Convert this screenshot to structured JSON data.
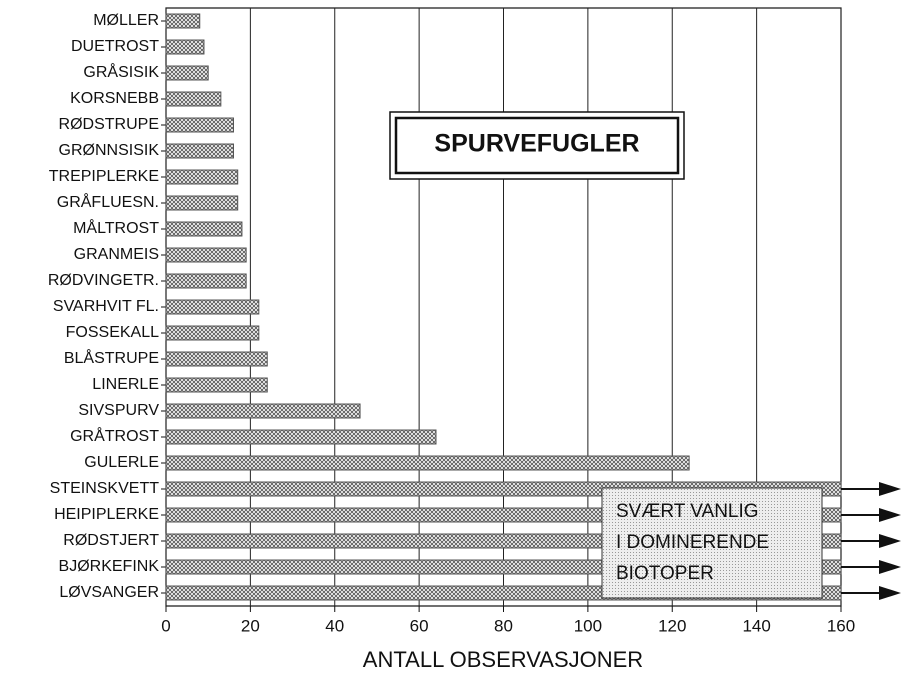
{
  "chart_data": {
    "type": "bar",
    "orientation": "horizontal",
    "title": "SPURVEFUGLER",
    "xlabel": "ANTALL OBSERVASJONER",
    "annotation": [
      "SVÆRT VANLIG",
      "I DOMINERENDE",
      "BIOTOPER"
    ],
    "categories": [
      "MØLLER",
      "DUETROST",
      "GRÅSISIK",
      "KORSNEBB",
      "RØDSTRUPE",
      "GRØNNSISIK",
      "TREPIPLERKE",
      "GRÅFLUESN.",
      "MÅLTROST",
      "GRANMEIS",
      "RØDVINGETR.",
      "SVARHVIT FL.",
      "FOSSEKALL",
      "BLÅSTRUPE",
      "LINERLE",
      "SIVSPURV",
      "GRÅTROST",
      "GULERLE",
      "STEINSKVETT",
      "HEIPIPLERKE",
      "RØDSTJERT",
      "BJØRKEFINK",
      "LØVSANGER"
    ],
    "values": [
      8,
      9,
      10,
      13,
      16,
      16,
      17,
      17,
      18,
      19,
      19,
      22,
      22,
      24,
      24,
      46,
      64,
      124,
      160,
      160,
      160,
      160,
      160
    ],
    "color": "#555555",
    "xlim": [
      0,
      160
    ],
    "xticks": [
      0,
      20,
      40,
      60,
      80,
      100,
      120,
      140,
      160
    ],
    "grid": true
  }
}
